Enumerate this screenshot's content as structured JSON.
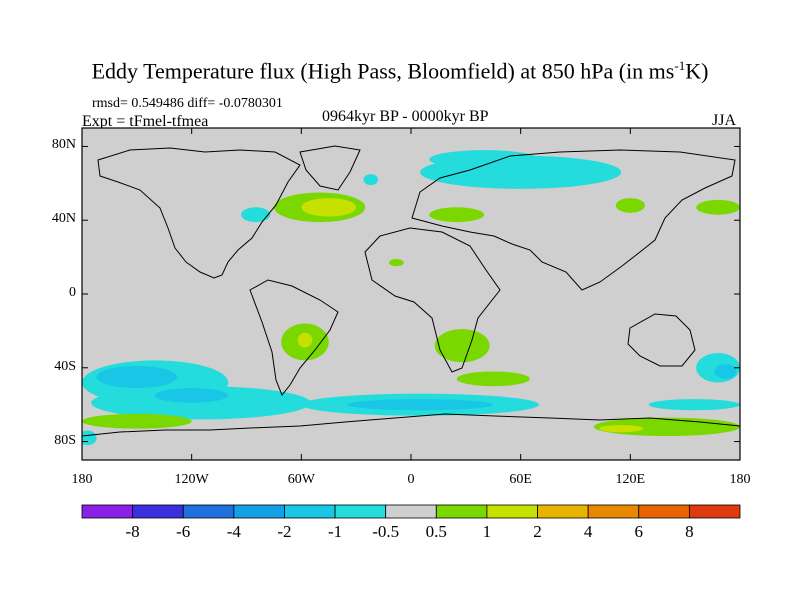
{
  "chart_data": {
    "type": "heatmap",
    "title_main": "Eddy Temperature flux (High Pass, Bloomfield) at 850 hPa (in ms",
    "title_sup": "-1",
    "title_end": "K)",
    "stats_text": "rmsd= 0.549486 diff= -0.0780301",
    "expt_text": "Expt = tFmel-tfmea",
    "period_text": "0964kyr BP - 0000kyr BP",
    "season_text": "JJA",
    "x_ticks": [
      "180",
      "120W",
      "60W",
      "0",
      "60E",
      "120E",
      "180"
    ],
    "y_ticks": [
      "80N",
      "40N",
      "0",
      "40S",
      "80S"
    ],
    "xlim": [
      -180,
      180
    ],
    "ylim": [
      -90,
      90
    ],
    "colorbar_labels": [
      "-8",
      "-6",
      "-4",
      "-2",
      "-1",
      "-0.5",
      "0.5",
      "1",
      "2",
      "4",
      "6",
      "8"
    ],
    "colorbar_colors": [
      "#8a1fe6",
      "#3b2fe0",
      "#1f6fdc",
      "#14a0e6",
      "#19c6e6",
      "#25dcdc",
      "#cfcfcf",
      "#7ad800",
      "#c6e000",
      "#e8b400",
      "#e88800",
      "#e86400",
      "#e03a10"
    ],
    "regions": [
      {
        "level": "1",
        "lon": -50,
        "lat": 47,
        "rlon": 25,
        "rlat": 8
      },
      {
        "level": "2",
        "lon": -45,
        "lat": 47,
        "rlon": 15,
        "rlat": 5
      },
      {
        "level": "-1",
        "lon": 60,
        "lat": 66,
        "rlon": 55,
        "rlat": 9
      },
      {
        "level": "-1",
        "lon": 40,
        "lat": 73,
        "rlon": 30,
        "rlat": 5
      },
      {
        "level": "-1",
        "lon": -85,
        "lat": 43,
        "rlon": 8,
        "rlat": 4
      },
      {
        "level": "-1",
        "lon": -22,
        "lat": 62,
        "rlon": 4,
        "rlat": 3
      },
      {
        "level": "1",
        "lon": 25,
        "lat": 43,
        "rlon": 15,
        "rlat": 4
      },
      {
        "level": "1",
        "lon": 120,
        "lat": 48,
        "rlon": 8,
        "rlat": 4
      },
      {
        "level": "1",
        "lon": 168,
        "lat": 47,
        "rlon": 12,
        "rlat": 4
      },
      {
        "level": "1",
        "lon": -8,
        "lat": 17,
        "rlon": 4,
        "rlat": 2
      },
      {
        "level": "1",
        "lon": -58,
        "lat": -26,
        "rlon": 13,
        "rlat": 10
      },
      {
        "level": "2",
        "lon": -58,
        "lat": -25,
        "rlon": 4,
        "rlat": 4
      },
      {
        "level": "1",
        "lon": 28,
        "lat": -28,
        "rlon": 15,
        "rlat": 9
      },
      {
        "level": "1",
        "lon": 45,
        "lat": -46,
        "rlon": 20,
        "rlat": 4
      },
      {
        "level": "-1",
        "lon": -140,
        "lat": -48,
        "rlon": 40,
        "rlat": 12
      },
      {
        "level": "-1",
        "lon": -115,
        "lat": -59,
        "rlon": 60,
        "rlat": 9
      },
      {
        "level": "-2",
        "lon": -150,
        "lat": -45,
        "rlon": 22,
        "rlat": 6
      },
      {
        "level": "-2",
        "lon": -120,
        "lat": -55,
        "rlon": 20,
        "rlat": 4
      },
      {
        "level": "-1",
        "lon": 5,
        "lat": -60,
        "rlon": 65,
        "rlat": 6
      },
      {
        "level": "-2",
        "lon": 5,
        "lat": -60,
        "rlon": 40,
        "rlat": 3
      },
      {
        "level": "-1",
        "lon": 168,
        "lat": -40,
        "rlon": 12,
        "rlat": 8
      },
      {
        "level": "-2",
        "lon": 172,
        "lat": -42,
        "rlon": 6,
        "rlat": 4
      },
      {
        "level": "1",
        "lon": -150,
        "lat": -69,
        "rlon": 30,
        "rlat": 4
      },
      {
        "level": "1",
        "lon": 140,
        "lat": -72,
        "rlon": 40,
        "rlat": 5
      },
      {
        "level": "2",
        "lon": 115,
        "lat": -73,
        "rlon": 12,
        "rlat": 2
      },
      {
        "level": "-1",
        "lon": 155,
        "lat": -60,
        "rlon": 25,
        "rlat": 3
      },
      {
        "level": "-1",
        "lon": -177,
        "lat": -78,
        "rlon": 5,
        "rlat": 4
      }
    ]
  }
}
